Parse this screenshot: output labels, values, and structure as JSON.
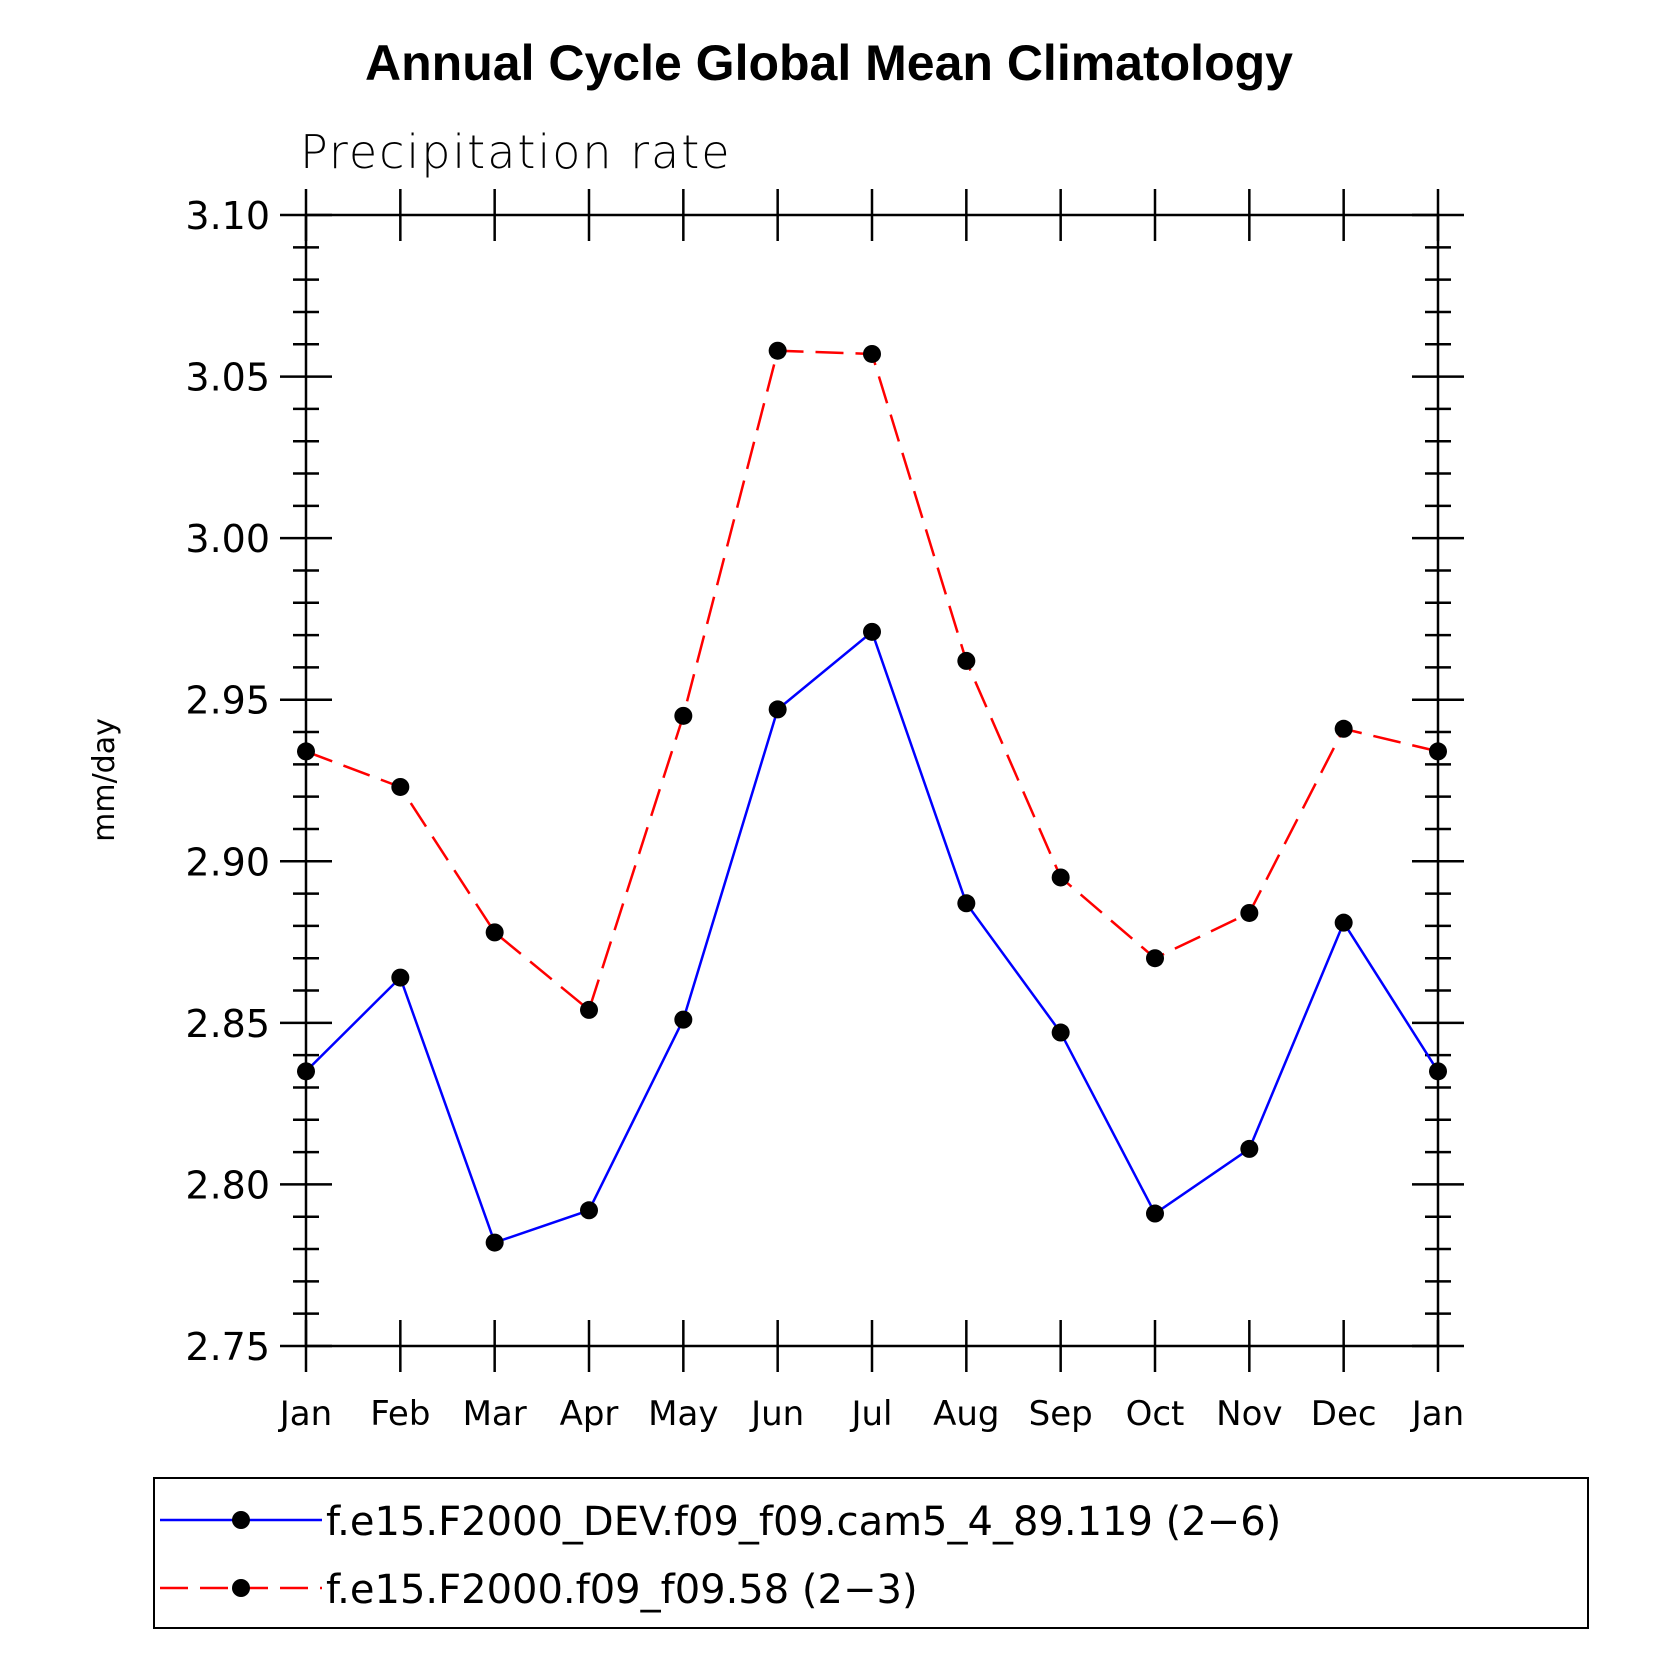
{
  "chart_data": {
    "type": "line",
    "title": "Annual Cycle Global Mean Climatology",
    "subtitle": "Precipitation rate",
    "ylabel": "mm/day",
    "xlabel": "",
    "categories": [
      "Jan",
      "Feb",
      "Mar",
      "Apr",
      "May",
      "Jun",
      "Jul",
      "Aug",
      "Sep",
      "Oct",
      "Nov",
      "Dec",
      "Jan"
    ],
    "ylim": [
      2.75,
      3.1
    ],
    "yticks": [
      "2.75",
      "2.80",
      "2.85",
      "2.90",
      "2.95",
      "3.00",
      "3.05",
      "3.10"
    ],
    "y_minor_step": 0.01,
    "legend_position": "bottom",
    "series": [
      {
        "name": "f.e15.F2000_DEV.f09_f09.cam5_4_89.119 (2−6)",
        "color": "#0000ff",
        "dash": "solid",
        "marker": "filled-circle",
        "values": [
          2.835,
          2.864,
          2.782,
          2.792,
          2.851,
          2.947,
          2.971,
          2.887,
          2.847,
          2.791,
          2.811,
          2.881,
          2.835
        ]
      },
      {
        "name": "f.e15.F2000.f09_f09.58 (2−3)",
        "color": "#ff0000",
        "dash": "dashed",
        "marker": "filled-circle",
        "values": [
          2.934,
          2.923,
          2.878,
          2.854,
          2.945,
          3.058,
          3.057,
          2.962,
          2.895,
          2.87,
          2.884,
          2.941,
          2.934
        ]
      }
    ]
  }
}
